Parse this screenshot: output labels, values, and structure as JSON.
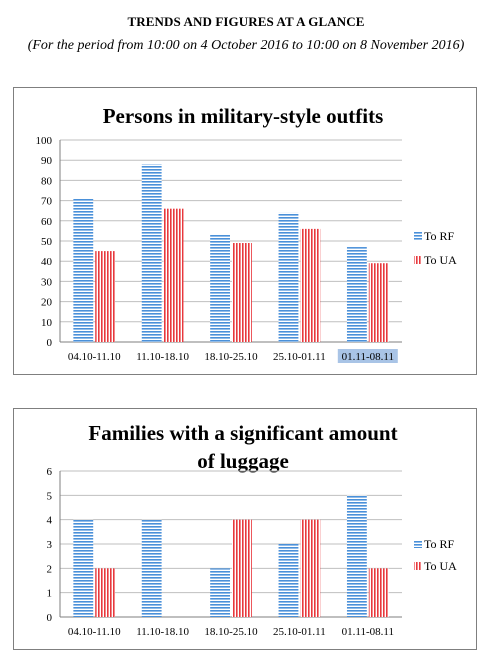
{
  "header": {
    "title": "TRENDS AND FIGURES AT A GLANCE",
    "subtitle": "(For the period from 10:00 on 4 October 2016 to 10:00 on 8 November 2016)"
  },
  "colors": {
    "to_rf": "#4a90d9",
    "to_ua": "#e8383d",
    "grid": "#bfbfbf",
    "axis": "#7f7f7f"
  },
  "chart_data": [
    {
      "type": "bar",
      "title": "Persons in military-style outfits",
      "categories": [
        "04.10-11.10",
        "11.10-18.10",
        "18.10-25.10",
        "25.10-01.11",
        "01.11-08.11"
      ],
      "series": [
        {
          "name": "To RF",
          "values": [
            71,
            88,
            53,
            64,
            47
          ]
        },
        {
          "name": "To UA",
          "values": [
            45,
            66,
            49,
            56,
            39
          ]
        }
      ],
      "ylim": [
        0,
        100
      ],
      "yticks": [
        0,
        10,
        20,
        30,
        40,
        50,
        60,
        70,
        80,
        90,
        100
      ],
      "grid": true,
      "legend": "right",
      "highlighted_category": "01.11-08.11"
    },
    {
      "type": "bar",
      "title": "Families with a significant amount of luggage",
      "title_lines": [
        "Families with a significant amount",
        "of luggage"
      ],
      "categories": [
        "04.10-11.10",
        "11.10-18.10",
        "18.10-25.10",
        "25.10-01.11",
        "01.11-08.11"
      ],
      "series": [
        {
          "name": "To RF",
          "values": [
            4,
            4,
            2,
            3,
            5
          ]
        },
        {
          "name": "To UA",
          "values": [
            2,
            0,
            4,
            4,
            2
          ]
        }
      ],
      "ylim": [
        0,
        6
      ],
      "yticks": [
        0,
        1,
        2,
        3,
        4,
        5,
        6
      ],
      "grid": true,
      "legend": "right"
    }
  ]
}
